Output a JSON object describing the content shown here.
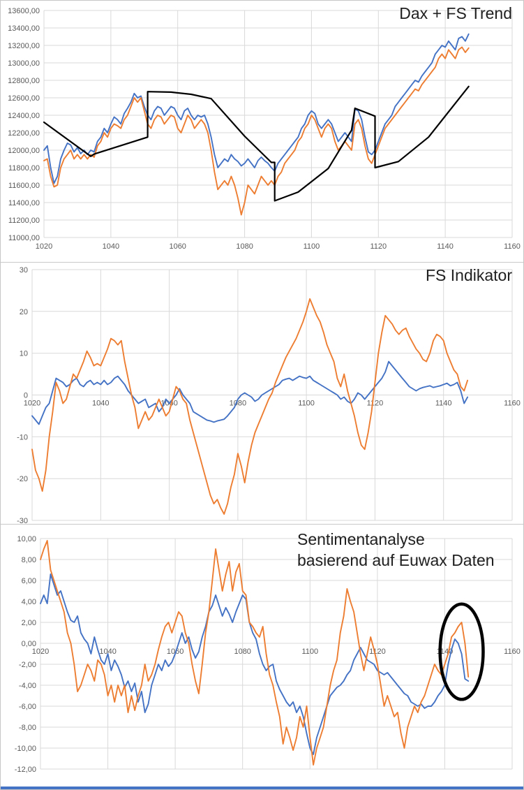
{
  "window": {
    "bottom_bar_color": "#4472c4"
  },
  "chart_data": [
    {
      "type": "line",
      "title": "Dax + FS Trend",
      "grid": true,
      "legend": "none",
      "x_axis": {
        "min": 1020,
        "max": 1160,
        "tick_values": [
          1020,
          1040,
          1060,
          1080,
          1100,
          1120,
          1140,
          1160
        ],
        "tick_labels": [
          "1020",
          "1040",
          "1060",
          "1080",
          "1100",
          "1120",
          "1140",
          "1160"
        ]
      },
      "y_axis": {
        "min": 11000,
        "max": 13600,
        "tick_values": [
          13600,
          13400,
          13200,
          13000,
          12800,
          12600,
          12400,
          12200,
          12000,
          11800,
          11600,
          11400,
          11200,
          11000
        ],
        "tick_labels": [
          "13600,00",
          "13400,00",
          "13200,00",
          "13000,00",
          "12800,00",
          "12600,00",
          "12400,00",
          "12200,00",
          "12000,00",
          "11800,00",
          "11600,00",
          "11400,00",
          "11200,00",
          "11000,00"
        ]
      },
      "series": [
        {
          "name": "blue",
          "color": "#4472C4",
          "x_start": 1020,
          "x_step": 1,
          "values": [
            12000,
            12050,
            11800,
            11620,
            11700,
            11900,
            12000,
            12080,
            12060,
            11980,
            12030,
            11960,
            12000,
            11950,
            12000,
            11980,
            12100,
            12150,
            12250,
            12200,
            12300,
            12380,
            12350,
            12300,
            12420,
            12480,
            12550,
            12650,
            12600,
            12620,
            12500,
            12400,
            12350,
            12450,
            12500,
            12480,
            12400,
            12450,
            12500,
            12480,
            12400,
            12350,
            12450,
            12480,
            12400,
            12350,
            12400,
            12380,
            12400,
            12300,
            12150,
            11950,
            11800,
            11850,
            11900,
            11870,
            11950,
            11900,
            11870,
            11820,
            11850,
            11900,
            11850,
            11800,
            11880,
            11920,
            11880,
            11850,
            11800,
            11760,
            11850,
            11900,
            11950,
            12000,
            12050,
            12100,
            12150,
            12250,
            12300,
            12400,
            12450,
            12420,
            12300,
            12250,
            12300,
            12350,
            12300,
            12200,
            12100,
            12150,
            12200,
            12150,
            12100,
            12470,
            12450,
            12350,
            12150,
            11980,
            11950,
            12000,
            12100,
            12200,
            12300,
            12350,
            12400,
            12500,
            12550,
            12600,
            12650,
            12700,
            12750,
            12800,
            12780,
            12850,
            12900,
            12950,
            13000,
            13100,
            13150,
            13200,
            13180,
            13250,
            13200,
            13150,
            13280,
            13300,
            13250,
            13330
          ]
        },
        {
          "name": "orange",
          "color": "#ED7D31",
          "x_start": 1020,
          "x_step": 1,
          "values": [
            11880,
            11900,
            11700,
            11580,
            11600,
            11800,
            11900,
            11950,
            12000,
            11900,
            11950,
            11900,
            11950,
            11900,
            11950,
            11920,
            12050,
            12100,
            12200,
            12150,
            12250,
            12300,
            12280,
            12250,
            12350,
            12400,
            12500,
            12600,
            12550,
            12600,
            12450,
            12300,
            12250,
            12350,
            12400,
            12380,
            12300,
            12350,
            12400,
            12380,
            12250,
            12200,
            12300,
            12400,
            12350,
            12250,
            12300,
            12350,
            12300,
            12200,
            12000,
            11750,
            11550,
            11600,
            11650,
            11600,
            11700,
            11600,
            11450,
            11260,
            11400,
            11600,
            11550,
            11500,
            11600,
            11700,
            11650,
            11600,
            11650,
            11600,
            11700,
            11750,
            11850,
            11900,
            11950,
            12000,
            12100,
            12150,
            12250,
            12300,
            12400,
            12350,
            12250,
            12150,
            12250,
            12300,
            12250,
            12100,
            12000,
            12050,
            12100,
            12050,
            12000,
            12300,
            12350,
            12250,
            12050,
            11900,
            11850,
            11950,
            12050,
            12150,
            12250,
            12300,
            12350,
            12400,
            12450,
            12500,
            12550,
            12600,
            12650,
            12700,
            12680,
            12750,
            12800,
            12850,
            12900,
            12950,
            13050,
            13100,
            13050,
            13150,
            13100,
            13050,
            13150,
            13180,
            13120,
            13170
          ]
        },
        {
          "name": "black",
          "color": "#000000",
          "stroke_width": 2.2,
          "points": [
            [
              1020,
              12320
            ],
            [
              1034,
              11930
            ],
            [
              1035,
              11955
            ],
            [
              1051,
              12150
            ],
            [
              1051,
              12670
            ],
            [
              1058,
              12665
            ],
            [
              1064,
              12640
            ],
            [
              1070,
              12590
            ],
            [
              1080,
              12160
            ],
            [
              1088,
              11860
            ],
            [
              1089,
              11860
            ],
            [
              1089,
              11420
            ],
            [
              1096,
              11520
            ],
            [
              1105,
              11790
            ],
            [
              1112,
              12230
            ],
            [
              1113,
              12480
            ],
            [
              1119,
              12390
            ],
            [
              1119,
              11800
            ],
            [
              1126,
              11870
            ],
            [
              1135,
              12150
            ],
            [
              1147,
              12730
            ]
          ]
        }
      ]
    },
    {
      "type": "line",
      "title": "FS Indikator",
      "grid": true,
      "legend": "none",
      "x_axis": {
        "min": 1020,
        "max": 1160,
        "tick_values": [
          1020,
          1040,
          1060,
          1080,
          1100,
          1120,
          1140,
          1160
        ],
        "tick_labels": [
          "1020",
          "1040",
          "1060",
          "1080",
          "1100",
          "1120",
          "1140",
          "1160"
        ]
      },
      "y_axis": {
        "min": -30,
        "max": 30,
        "tick_values": [
          30,
          20,
          10,
          0,
          -10,
          -20,
          -30
        ],
        "tick_labels": [
          "30",
          "20",
          "10",
          "0",
          "-10",
          "-20",
          "-30"
        ]
      },
      "series": [
        {
          "name": "blue",
          "color": "#4472C4",
          "x_start": 1020,
          "x_step": 1,
          "values": [
            -5,
            -6,
            -7,
            -5,
            -3,
            -2,
            1,
            4,
            3.5,
            3,
            2,
            2.5,
            3.5,
            4,
            2.5,
            2,
            3,
            3.5,
            2.5,
            3,
            2.5,
            3.5,
            2.5,
            3,
            4,
            4.5,
            3.5,
            2.5,
            1,
            0,
            -1,
            -2,
            -1.5,
            -1,
            -3,
            -2.5,
            -2,
            -4,
            -3,
            -1,
            -2,
            -1,
            0,
            1.5,
            0,
            -1,
            -2,
            -4,
            -4.5,
            -5,
            -5.5,
            -6,
            -6.2,
            -6.5,
            -6.2,
            -6,
            -5.8,
            -5,
            -4,
            -3,
            -1,
            0,
            0.5,
            0,
            -0.5,
            -1.5,
            -1,
            0,
            0.5,
            1,
            1.5,
            2,
            2.5,
            3.5,
            3.8,
            4,
            3.5,
            4,
            4.5,
            4.2,
            4,
            4.5,
            3.5,
            3,
            2.5,
            2,
            1.5,
            1,
            0.5,
            0,
            -1,
            -0.5,
            -1.5,
            -2,
            -1,
            0.5,
            0,
            -1,
            0,
            1,
            2,
            3,
            4,
            5.5,
            8,
            7,
            6,
            5,
            4,
            3,
            2,
            1.5,
            1,
            1.5,
            1.8,
            2,
            2.2,
            1.8,
            2,
            2.2,
            2.5,
            2.8,
            2.2,
            2.5,
            3,
            1,
            -2,
            -0.5
          ]
        },
        {
          "name": "orange",
          "color": "#ED7D31",
          "x_start": 1020,
          "x_step": 1,
          "values": [
            -13,
            -18,
            -20,
            -23,
            -18,
            -10,
            -4,
            3,
            1,
            -2,
            -1,
            2,
            5,
            4,
            6,
            8,
            10.5,
            9,
            7,
            7.5,
            7,
            9,
            11,
            13.5,
            13,
            12,
            13,
            8,
            4,
            0,
            -3,
            -8,
            -6,
            -4,
            -6,
            -5,
            -3,
            -1,
            -3,
            -5,
            -4,
            -1,
            2,
            1,
            -1,
            -2,
            -6,
            -9,
            -12,
            -15,
            -18,
            -21,
            -24,
            -26,
            -25,
            -27,
            -28.5,
            -26,
            -22,
            -19,
            -14,
            -17,
            -21,
            -16,
            -12,
            -9,
            -7,
            -5,
            -3,
            -1,
            0.5,
            3,
            5,
            7,
            9,
            10.5,
            12,
            13.5,
            15.5,
            17.5,
            20,
            23,
            21,
            19,
            17.5,
            15,
            12,
            10,
            8,
            4,
            2,
            5,
            1,
            -2,
            -5,
            -9,
            -12,
            -13,
            -9,
            -4,
            3,
            10,
            15,
            19,
            18,
            17,
            15.5,
            14.5,
            15.5,
            16,
            14,
            12.5,
            11,
            10,
            8.5,
            8,
            10,
            13,
            14.5,
            14,
            13,
            10,
            8,
            6,
            5,
            2,
            1,
            3.5
          ]
        }
      ]
    },
    {
      "type": "line",
      "title": "Sentimentanalyse",
      "subtitle": "basierend auf Euwax Daten",
      "grid": true,
      "legend": "none",
      "x_axis": {
        "min": 1020,
        "max": 1160,
        "tick_values": [
          1020,
          1040,
          1060,
          1080,
          1100,
          1120,
          1140,
          1160
        ],
        "tick_labels": [
          "1020",
          "1040",
          "1060",
          "1080",
          "1100",
          "1120",
          "1140",
          "1160"
        ]
      },
      "y_axis": {
        "min": -12,
        "max": 10,
        "tick_values": [
          10,
          8,
          6,
          4,
          2,
          0,
          -2,
          -4,
          -6,
          -8,
          -10,
          -12
        ],
        "tick_labels": [
          "10,00",
          "8,00",
          "6,00",
          "4,00",
          "2,00",
          "0,00",
          "-2,00",
          "-4,00",
          "-6,00",
          "-8,00",
          "-10,00",
          "-12,00"
        ]
      },
      "annotation": {
        "shape": "ellipse",
        "x": 1145,
        "y": -0.8,
        "rx": 6.4,
        "ry": 4.55,
        "stroke": "#000000",
        "stroke_width": 4.5
      },
      "series": [
        {
          "name": "blue",
          "color": "#4472C4",
          "x_start": 1020,
          "x_step": 1,
          "values": [
            3.8,
            4.6,
            3.8,
            6.6,
            5.6,
            4.6,
            5,
            4,
            3,
            2.2,
            2,
            2.6,
            1,
            0.4,
            0,
            -1,
            0.6,
            -0.6,
            -1.6,
            -2,
            -1,
            -2.6,
            -1.6,
            -2.2,
            -3,
            -4.2,
            -3.6,
            -4.6,
            -3.8,
            -5.6,
            -4.6,
            -6.6,
            -5.8,
            -4,
            -3,
            -2,
            -2.6,
            -1.6,
            -2.2,
            -1.8,
            -1,
            0,
            1,
            0,
            0.6,
            -0.6,
            -1.4,
            -0.8,
            0.6,
            1.6,
            3,
            3.6,
            4.6,
            3.6,
            2.6,
            3.4,
            2.8,
            2,
            3,
            3.8,
            4.6,
            4.2,
            2,
            1,
            0.4,
            -1,
            -2,
            -2.6,
            -2.2,
            -2,
            -3.6,
            -4.4,
            -5,
            -5.6,
            -6,
            -5.6,
            -6.6,
            -6,
            -7,
            -8.6,
            -10,
            -10.6,
            -9,
            -8,
            -7,
            -6,
            -5,
            -4.6,
            -4.2,
            -4,
            -3.6,
            -3,
            -2.6,
            -1.6,
            -1,
            -0.4,
            -1,
            -1.6,
            -1.8,
            -2,
            -2.6,
            -2.8,
            -3,
            -2.8,
            -3.2,
            -3.6,
            -4,
            -4.4,
            -4.8,
            -5,
            -5.6,
            -5.8,
            -6,
            -5.8,
            -6.2,
            -6,
            -6,
            -5.6,
            -5,
            -4.6,
            -4,
            -2,
            -0.6,
            0.4,
            0,
            -1,
            -3.4,
            -3.6
          ]
        },
        {
          "name": "orange",
          "color": "#ED7D31",
          "x_start": 1020,
          "x_step": 1,
          "values": [
            8,
            9,
            9.8,
            7,
            6,
            5,
            4,
            3,
            1,
            0,
            -2,
            -4.6,
            -4,
            -3,
            -2,
            -2.6,
            -3.6,
            -1.6,
            -2,
            -3,
            -5,
            -4,
            -5.6,
            -4,
            -5,
            -4,
            -6.6,
            -5,
            -6.4,
            -5,
            -4,
            -2,
            -3.6,
            -3,
            -2,
            -0.6,
            0.6,
            1.6,
            2,
            1,
            2,
            3,
            2.6,
            1,
            0,
            -2,
            -3.6,
            -4.8,
            -2,
            1,
            3,
            6,
            9,
            7,
            5,
            6.6,
            7.8,
            5,
            6.8,
            7.6,
            5,
            4.6,
            2,
            1.6,
            1,
            0.6,
            1.6,
            -1,
            -3,
            -4,
            -5.6,
            -7,
            -9.6,
            -8,
            -9,
            -10.2,
            -9,
            -7,
            -8,
            -6,
            -9,
            -11.6,
            -10,
            -9,
            -8,
            -6,
            -4,
            -2.6,
            -1.6,
            1,
            2.6,
            5.2,
            4,
            3,
            1,
            -1,
            -2.6,
            -1,
            0.6,
            -0.6,
            -2,
            -4,
            -6,
            -5,
            -6,
            -7,
            -6.6,
            -8.6,
            -10,
            -8,
            -7,
            -6,
            -6.6,
            -5.6,
            -5,
            -4,
            -3,
            -2,
            -2.6,
            -3,
            -2,
            -1,
            0.6,
            1,
            1.6,
            2,
            0,
            -3.2
          ]
        }
      ]
    }
  ]
}
